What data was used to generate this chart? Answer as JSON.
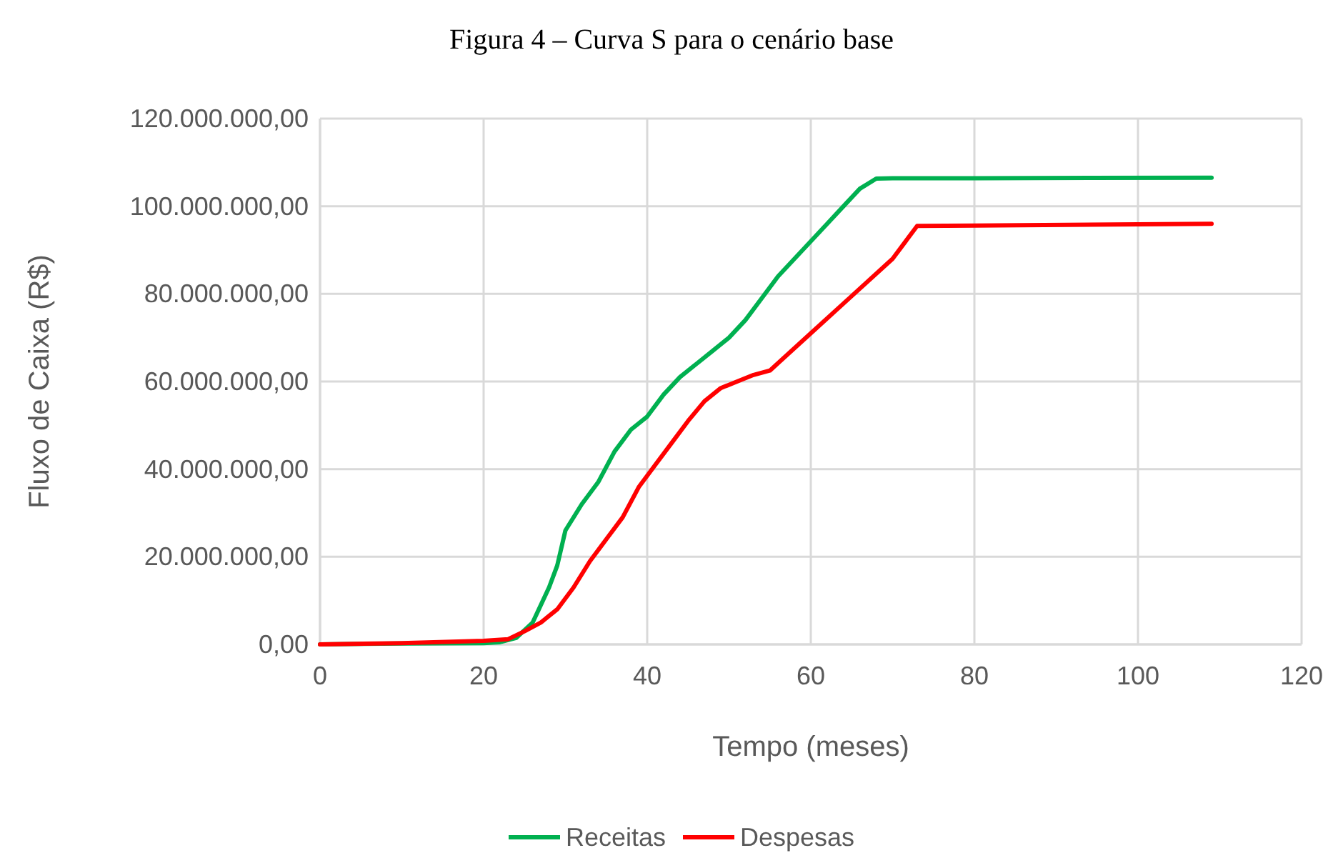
{
  "chart_data": {
    "type": "line",
    "title": "Figura 4 – Curva S para o cenário base",
    "xlabel": "Tempo (meses)",
    "ylabel": "Fluxo de Caixa (R$)",
    "xlim": [
      0,
      120
    ],
    "xticks": [
      0,
      20,
      40,
      60,
      80,
      100,
      120
    ],
    "ylim": [
      0,
      120000000
    ],
    "yticks": [
      {
        "value": 0,
        "label": "0,00"
      },
      {
        "value": 20000000,
        "label": "20.000.000,00"
      },
      {
        "value": 40000000,
        "label": "40.000.000,00"
      },
      {
        "value": 60000000,
        "label": "60.000.000,00"
      },
      {
        "value": 80000000,
        "label": "80.000.000,00"
      },
      {
        "value": 100000000,
        "label": "100.000.000,00"
      },
      {
        "value": 120000000,
        "label": "120.000.000,00"
      }
    ],
    "grid": true,
    "legend": "bottom",
    "marker": "none",
    "line_style": "solid",
    "series": [
      {
        "name": "Receitas",
        "color": "#00b050",
        "x": [
          0,
          10,
          20,
          22,
          24,
          26,
          28,
          29,
          30,
          32,
          34,
          36,
          38,
          40,
          42,
          44,
          46,
          48,
          50,
          52,
          54,
          56,
          58,
          60,
          62,
          64,
          66,
          68,
          70,
          80,
          109
        ],
        "values": [
          0,
          200000,
          300000,
          500000,
          1500000,
          5000000,
          13000000,
          18000000,
          26000000,
          32000000,
          37000000,
          44000000,
          49000000,
          52000000,
          57000000,
          61000000,
          64000000,
          67000000,
          70000000,
          74000000,
          79000000,
          84000000,
          88000000,
          92000000,
          96000000,
          100000000,
          104000000,
          106300000,
          106400000,
          106400000,
          106500000
        ]
      },
      {
        "name": "Despesas",
        "color": "#ff0000",
        "x": [
          0,
          10,
          20,
          23,
          25,
          27,
          29,
          31,
          33,
          35,
          37,
          39,
          41,
          43,
          45,
          47,
          49,
          51,
          53,
          55,
          60,
          65,
          70,
          73,
          80,
          109
        ],
        "values": [
          0,
          300000,
          800000,
          1200000,
          3000000,
          5000000,
          8000000,
          13000000,
          19000000,
          24000000,
          29000000,
          36000000,
          41000000,
          46000000,
          51000000,
          55500000,
          58500000,
          60000000,
          61500000,
          62500000,
          71000000,
          79500000,
          88000000,
          95500000,
          95600000,
          96000000
        ]
      }
    ]
  }
}
